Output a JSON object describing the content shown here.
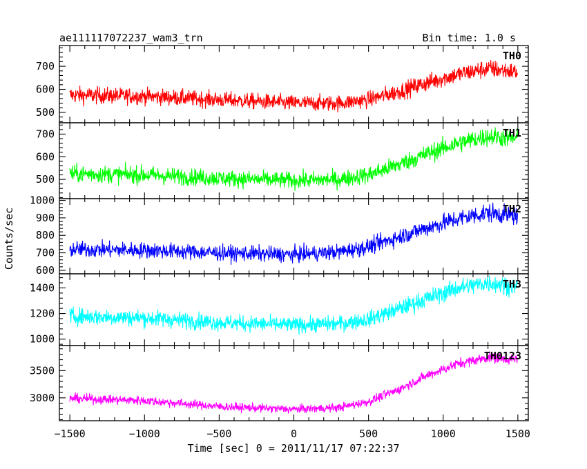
{
  "header": {
    "title": "ae111117072237_wam3_trn",
    "bin_time": "Bin time: 1.0 s"
  },
  "axes": {
    "xlabel": "Time [sec] 0 = 2011/11/17 07:22:37",
    "ylabel": "Counts/sec"
  },
  "chart_data": {
    "type": "line",
    "title": "ae111117072237_wam3_trn",
    "subtitle": "Bin time: 1.0 s",
    "xlabel": "Time [sec] 0 = 2011/11/17 07:22:37",
    "ylabel": "Counts/sec",
    "xlim": [
      -1570,
      1570
    ],
    "xticks": [
      -1500,
      -1000,
      -500,
      0,
      500,
      1000,
      1500
    ],
    "x_data_range": [
      -1500,
      1500
    ],
    "bin_seconds": 1.0,
    "grid": false,
    "panels": [
      {
        "name": "TH0",
        "color": "#ff0000",
        "ylim": [
          455,
          790
        ],
        "yticks": [
          500,
          600,
          700
        ],
        "trend": {
          "x": [
            -1500,
            -1000,
            -500,
            0,
            300,
            500,
            700,
            900,
            1100,
            1300,
            1500
          ],
          "mean": [
            575,
            570,
            555,
            540,
            540,
            555,
            590,
            630,
            665,
            690,
            675
          ],
          "spread": [
            48,
            45,
            45,
            45,
            45,
            45,
            48,
            50,
            50,
            52,
            50
          ]
        }
      },
      {
        "name": "TH1",
        "color": "#00ff00",
        "ylim": [
          415,
          750
        ],
        "yticks": [
          500,
          600,
          700
        ],
        "trend": {
          "x": [
            -1500,
            -1000,
            -500,
            0,
            300,
            500,
            700,
            900,
            1100,
            1300,
            1500
          ],
          "mean": [
            525,
            520,
            505,
            495,
            500,
            520,
            565,
            615,
            660,
            690,
            680
          ],
          "spread": [
            50,
            50,
            48,
            48,
            48,
            50,
            50,
            52,
            55,
            55,
            55
          ]
        }
      },
      {
        "name": "TH2",
        "color": "#0000ff",
        "ylim": [
          580,
          1010
        ],
        "yticks": [
          600,
          700,
          800,
          900,
          1000
        ],
        "trend": {
          "x": [
            -1500,
            -1000,
            -500,
            0,
            300,
            500,
            700,
            900,
            1100,
            1300,
            1500
          ],
          "mean": [
            720,
            715,
            700,
            690,
            705,
            735,
            790,
            845,
            895,
            930,
            910
          ],
          "spread": [
            60,
            60,
            58,
            58,
            58,
            60,
            62,
            65,
            68,
            70,
            68
          ]
        }
      },
      {
        "name": "TH3",
        "color": "#00ffff",
        "ylim": [
          950,
          1510
        ],
        "yticks": [
          1000,
          1200,
          1400
        ],
        "trend": {
          "x": [
            -1500,
            -1000,
            -500,
            0,
            300,
            500,
            700,
            900,
            1100,
            1300,
            1500
          ],
          "mean": [
            1180,
            1165,
            1130,
            1110,
            1120,
            1155,
            1235,
            1320,
            1400,
            1440,
            1410
          ],
          "spread": [
            85,
            85,
            82,
            80,
            80,
            82,
            85,
            90,
            92,
            95,
            92
          ]
        }
      },
      {
        "name": "TH0123",
        "color": "#ff00ff",
        "ylim": [
          2580,
          3960
        ],
        "yticks": [
          3000,
          3500
        ],
        "trend": {
          "x": [
            -1500,
            -1000,
            -500,
            0,
            300,
            500,
            700,
            900,
            1100,
            1300,
            1500
          ],
          "mean": [
            2990,
            2950,
            2840,
            2790,
            2820,
            2930,
            3150,
            3420,
            3630,
            3740,
            3700
          ],
          "spread": [
            110,
            110,
            105,
            100,
            100,
            105,
            110,
            115,
            120,
            125,
            120
          ]
        }
      }
    ]
  }
}
